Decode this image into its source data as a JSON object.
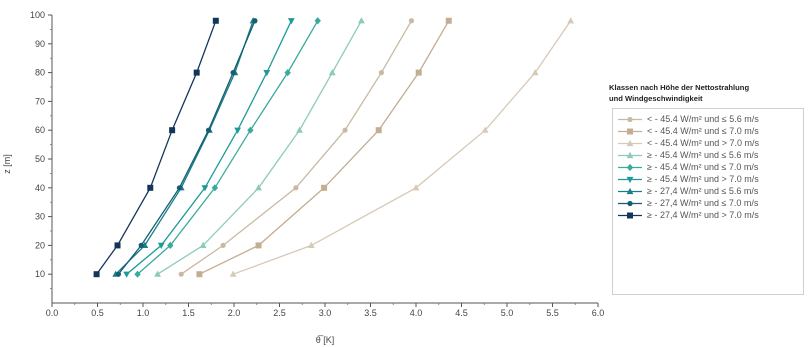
{
  "chart_data": {
    "type": "line",
    "xlabel": "θ̅ [K]",
    "ylabel": "z [m]",
    "xlim": [
      0.0,
      6.0
    ],
    "ylim": [
      0,
      100
    ],
    "x_ticks": [
      "0.0",
      "0.5",
      "1.0",
      "1.5",
      "2.0",
      "2.5",
      "3.0",
      "3.5",
      "4.0",
      "4.5",
      "5.0",
      "5.5",
      "6.0"
    ],
    "y_ticks": [
      "10",
      "20",
      "30",
      "40",
      "50",
      "60",
      "70",
      "80",
      "90",
      "100"
    ],
    "grid": false,
    "legend_position": "right",
    "legend_title": [
      "Klassen nach Höhe der Nettostrahlung",
      "und Windgeschwindigkeit"
    ],
    "z": [
      10,
      20,
      40,
      60,
      80,
      98
    ],
    "series": [
      {
        "name": "< - 45.4 W/m² und ≤ 5.6 m/s",
        "color": "#c9b9a2",
        "marker": "circle",
        "values": [
          1.42,
          1.88,
          2.68,
          3.22,
          3.62,
          3.95
        ]
      },
      {
        "name": "< - 45.4 W/m² und ≤ 7.0 m/s",
        "color": "#c4ad92",
        "marker": "square",
        "values": [
          1.62,
          2.27,
          2.99,
          3.59,
          4.03,
          4.36
        ]
      },
      {
        "name": "< - 45.4 W/m² und > 7.0 m/s",
        "color": "#d7c9b6",
        "marker": "triangle",
        "values": [
          1.99,
          2.85,
          4.0,
          4.76,
          5.31,
          5.7
        ]
      },
      {
        "name": "≥ - 45.4 W/m² und ≤ 5.6 m/s",
        "color": "#8ccbb8",
        "marker": "triangle",
        "values": [
          1.16,
          1.66,
          2.27,
          2.72,
          3.08,
          3.4
        ]
      },
      {
        "name": "≥ - 45.4 W/m² und ≤ 7.0 m/s",
        "color": "#3aaa9c",
        "marker": "diamond",
        "values": [
          0.94,
          1.3,
          1.79,
          2.18,
          2.59,
          2.92
        ]
      },
      {
        "name": "≥ - 45.4 W/m² und > 7.0 m/s",
        "color": "#1d9a97",
        "marker": "tri-down",
        "values": [
          0.82,
          1.2,
          1.68,
          2.04,
          2.36,
          2.63
        ]
      },
      {
        "name": "≥ - 27,4 W/m² und ≤ 5.6 m/s",
        "color": "#1a7d87",
        "marker": "triangle",
        "values": [
          0.7,
          1.02,
          1.42,
          1.73,
          2.01,
          2.21
        ]
      },
      {
        "name": "≥ - 27,4 W/m² und ≤ 7.0 m/s",
        "color": "#135e73",
        "marker": "circle",
        "values": [
          0.73,
          0.98,
          1.4,
          1.72,
          1.99,
          2.23
        ]
      },
      {
        "name": "≥ - 27,4 W/m² und > 7.0 m/s",
        "color": "#14355a",
        "marker": "square",
        "values": [
          0.49,
          0.72,
          1.08,
          1.32,
          1.59,
          1.8
        ]
      }
    ]
  }
}
